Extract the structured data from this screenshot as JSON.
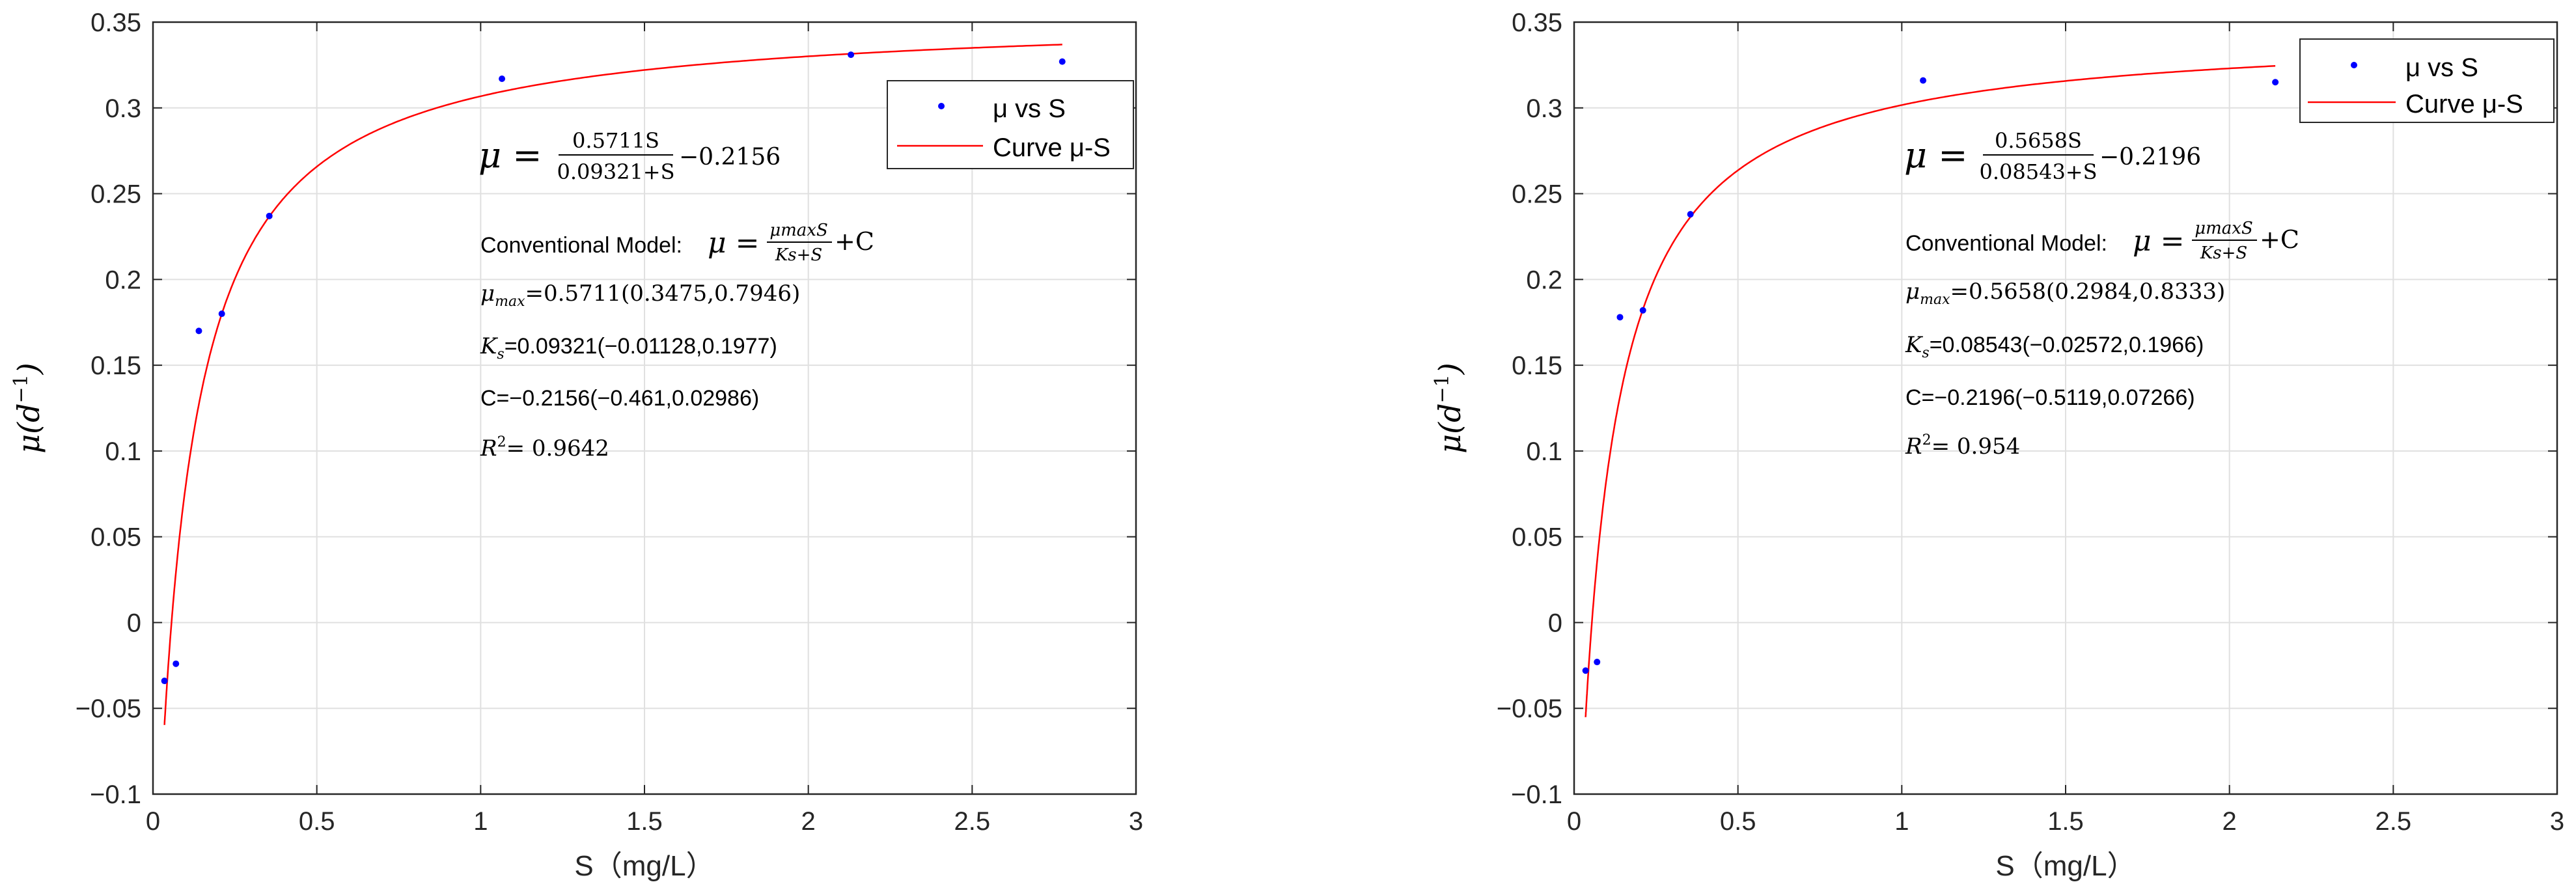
{
  "chart_data": [
    {
      "type": "scatter",
      "xlabel": "S（mg/L）",
      "ylabel": "μ(d⁻¹)",
      "xlim": [
        0,
        3
      ],
      "ylim": [
        -0.1,
        0.35
      ],
      "xticks": [
        "0",
        "0.5",
        "1",
        "1.5",
        "2",
        "2.5",
        "3"
      ],
      "yticks": [
        "−0.1",
        "−0.05",
        "0",
        "0.05",
        "0.1",
        "0.15",
        "0.2",
        "0.25",
        "0.3",
        "0.35"
      ],
      "grid": true,
      "legend_position": "top-right",
      "series": [
        {
          "name": "μ vs S",
          "kind": "points",
          "color": "#0000ff",
          "x": [
            0.035,
            0.07,
            0.14,
            0.21,
            0.355,
            1.065,
            2.13,
            2.775
          ],
          "y": [
            -0.034,
            -0.024,
            0.17,
            0.18,
            0.237,
            0.317,
            0.331,
            0.327
          ]
        },
        {
          "name": "Curve μ-S",
          "kind": "model",
          "color": "#ff0000",
          "mu_max": 0.5711,
          "Ks": 0.09321,
          "C": -0.2156,
          "x_range": [
            0.035,
            2.775
          ]
        }
      ],
      "annotations": {
        "fit_equation": {
          "lhs": "μ =",
          "numerator": "0.5711S",
          "denominator": "0.09321+S",
          "constant": "−0.2156"
        },
        "model_label": "Conventional Model:",
        "model_numerator": "μmaxS",
        "model_denominator": "Ks+S",
        "model_suffix": "+C",
        "mu_max_value": "=0.5711(0.3475,0.7946)",
        "ks_value": "=0.09321(−0.01128,0.1977)",
        "c_line": "C=−0.2156(−0.461,0.02986)",
        "r2_value": "= 0.9642"
      }
    },
    {
      "type": "scatter",
      "xlabel": "S（mg/L）",
      "ylabel": "μ(d⁻¹)",
      "xlim": [
        0,
        3
      ],
      "ylim": [
        -0.1,
        0.35
      ],
      "xticks": [
        "0",
        "0.5",
        "1",
        "1.5",
        "2",
        "2.5",
        "3"
      ],
      "yticks": [
        "−0.1",
        "−0.05",
        "0",
        "0.05",
        "0.1",
        "0.15",
        "0.2",
        "0.25",
        "0.3",
        "0.35"
      ],
      "grid": true,
      "legend_position": "top-right",
      "series": [
        {
          "name": "μ vs S",
          "kind": "points",
          "color": "#0000ff",
          "x": [
            0.035,
            0.07,
            0.14,
            0.21,
            0.355,
            1.065,
            2.14
          ],
          "y": [
            -0.028,
            -0.023,
            0.178,
            0.182,
            0.238,
            0.316,
            0.315
          ]
        },
        {
          "name": "Curve μ-S",
          "kind": "model",
          "color": "#ff0000",
          "mu_max": 0.5658,
          "Ks": 0.08543,
          "C": -0.2196,
          "x_range": [
            0.035,
            2.14
          ]
        }
      ],
      "annotations": {
        "fit_equation": {
          "lhs": "μ =",
          "numerator": "0.5658S",
          "denominator": "0.08543+S",
          "constant": "−0.2196"
        },
        "model_label": "Conventional Model:",
        "model_numerator": "μmaxS",
        "model_denominator": "Ks+S",
        "model_suffix": "+C",
        "mu_max_value": "=0.5658(0.2984,0.8333)",
        "ks_value": "=0.08543(−0.02572,0.1966)",
        "c_line": "C=−0.2196(−0.5119,0.07266)",
        "r2_value": "= 0.954"
      }
    }
  ]
}
